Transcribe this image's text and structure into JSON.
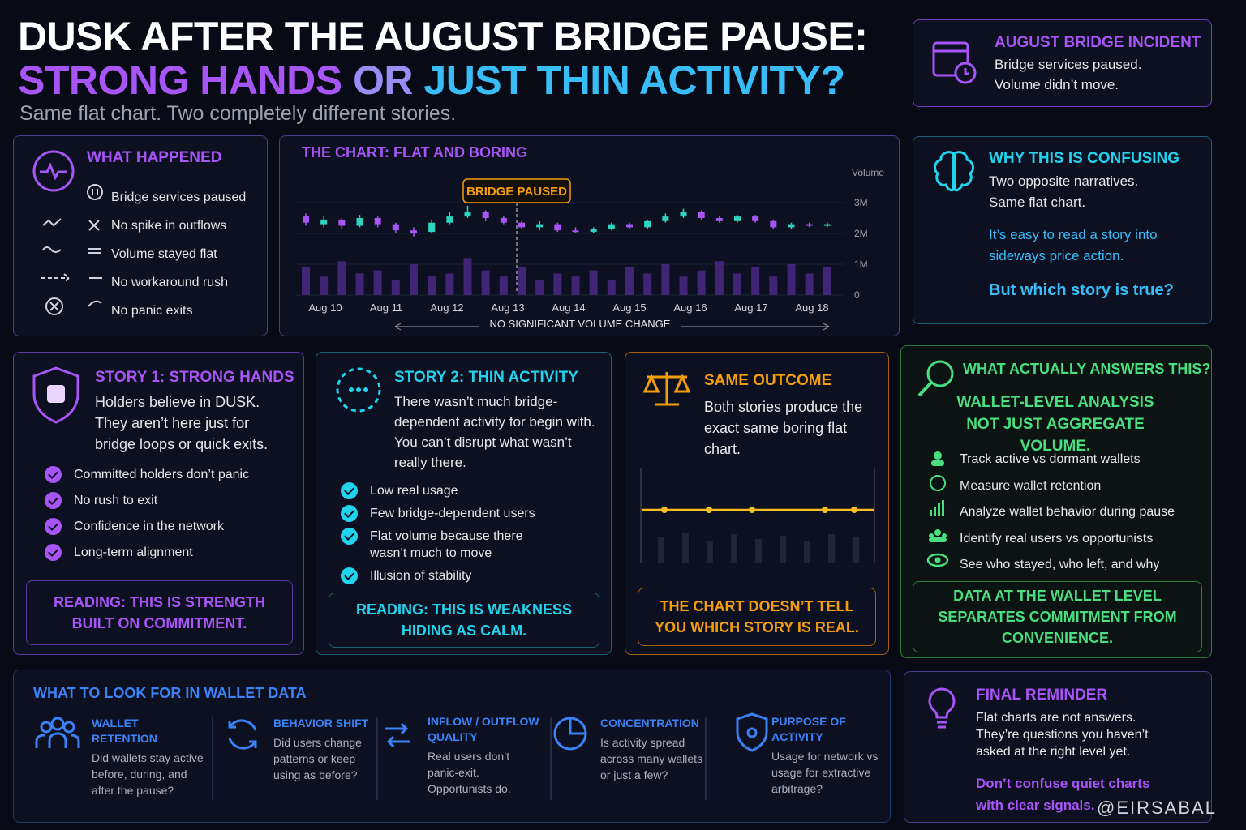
{
  "header": {
    "title_line1": "DUSK AFTER THE AUGUST BRIDGE PAUSE:",
    "title_line2_a": "STRONG HANDS",
    "title_line2_b": "OR",
    "title_line2_c": "JUST THIN ACTIVITY?",
    "subtitle": "Same flat chart. Two completely different stories."
  },
  "incident": {
    "title": "AUGUST BRIDGE INCIDENT",
    "lines": [
      "Bridge services paused.",
      "Volume didn’t move."
    ]
  },
  "what_happened": {
    "title": "WHAT HAPPENED",
    "items": [
      "Bridge services paused",
      "No spike in outflows",
      "Volume stayed flat",
      "No workaround rush",
      "No panic exits"
    ]
  },
  "chart_data": {
    "type": "candlestick",
    "title": "THE CHART: FLAT AND BORING",
    "annotation": "BRIDGE PAUSED",
    "y_label": "Volume",
    "footer": "NO SIGNIFICANT VOLUME CHANGE",
    "x_labels": [
      "Aug 10",
      "Aug 11",
      "Aug 12",
      "Aug 13",
      "Aug 14",
      "Aug 15",
      "Aug 16",
      "Aug 17",
      "Aug 18"
    ],
    "ylim": [
      0,
      4000000
    ],
    "yticks": [
      0,
      {
        "value": 1000000,
        "label": "1M"
      },
      {
        "value": 2000000,
        "label": "2M"
      },
      {
        "value": 3000000,
        "label": "3M"
      }
    ],
    "up_color": "#2dd4bf",
    "down_color": "#a855f7",
    "volume_color": "#4c2a8a",
    "open": [
      2550000,
      2300000,
      2450000,
      2250000,
      2500000,
      2300000,
      2100000,
      2050000,
      2350000,
      2550000,
      2700000,
      2500000,
      2350000,
      2200000,
      2300000,
      2100000,
      2050000,
      2150000,
      2300000,
      2200000,
      2400000,
      2550000,
      2700000,
      2500000,
      2400000,
      2550000,
      2400000,
      2200000,
      2300000,
      2250000
    ],
    "close": [
      2350000,
      2450000,
      2250000,
      2500000,
      2300000,
      2100000,
      2000000,
      2350000,
      2550000,
      2700000,
      2500000,
      2350000,
      2200000,
      2300000,
      2100000,
      2050000,
      2150000,
      2300000,
      2200000,
      2400000,
      2550000,
      2700000,
      2500000,
      2400000,
      2550000,
      2400000,
      2200000,
      2300000,
      2250000,
      2300000
    ],
    "high": [
      2650000,
      2550000,
      2500000,
      2600000,
      2550000,
      2350000,
      2200000,
      2450000,
      2700000,
      2900000,
      2750000,
      2550000,
      2400000,
      2400000,
      2350000,
      2200000,
      2200000,
      2350000,
      2350000,
      2450000,
      2650000,
      2800000,
      2750000,
      2550000,
      2600000,
      2600000,
      2450000,
      2350000,
      2350000,
      2350000
    ],
    "low": [
      2250000,
      2200000,
      2150000,
      2200000,
      2200000,
      2000000,
      1900000,
      2000000,
      2300000,
      2500000,
      2400000,
      2300000,
      2150000,
      2100000,
      2050000,
      2000000,
      2000000,
      2100000,
      2150000,
      2150000,
      2350000,
      2500000,
      2450000,
      2350000,
      2350000,
      2350000,
      2150000,
      2150000,
      2200000,
      2200000
    ],
    "volume": [
      900000,
      600000,
      1100000,
      700000,
      800000,
      500000,
      1000000,
      600000,
      700000,
      1200000,
      800000,
      600000,
      900000,
      500000,
      700000,
      600000,
      800000,
      500000,
      900000,
      700000,
      1000000,
      600000,
      800000,
      1100000,
      700000,
      900000,
      600000,
      1000000,
      700000,
      900000
    ]
  },
  "confusing": {
    "title": "WHY THIS IS CONFUSING",
    "lines": [
      "Two opposite narratives.",
      "Same flat chart."
    ],
    "note": "It’s easy to read a story into sideways price action.",
    "question": "But which story is true?"
  },
  "story1": {
    "title": "STORY 1: STRONG HANDS",
    "intro": "Holders believe in DUSK. They aren’t here just for bridge loops or quick exits.",
    "bullets": [
      "Committed holders don’t panic",
      "No rush to exit",
      "Confidence in the network",
      "Long-term alignment"
    ],
    "reading": "READING: THIS IS STRENGTH BUILT ON COMMITMENT."
  },
  "story2": {
    "title": "STORY 2:  THIN ACTIVITY",
    "intro": "There wasn’t much bridge-dependent activity for begin with. You can’t disrupt what wasn’t really there.",
    "bullets": [
      "Low real usage",
      "Few bridge-dependent users",
      "Flat volume because there wasn’t much to move",
      "Illusion of stability"
    ],
    "reading": "READING: THIS IS WEAKNESS HIDING AS CALM."
  },
  "same": {
    "title": "SAME OUTCOME",
    "text": "Both stories produce the exact same boring flat chart.",
    "callout": "THE CHART DOESN’T TELL YOU WHICH STORY IS REAL."
  },
  "answers": {
    "title": "WHAT ACTUALLY ANSWERS THIS?",
    "headline": "WALLET-LEVEL ANALYSIS NOT JUST AGGREGATE VOLUME.",
    "items": [
      "Track active vs dormant wallets",
      "Measure wallet retention",
      "Analyze wallet behavior during pause",
      "Identify real users vs opportunists",
      "See who stayed, who left, and why"
    ],
    "callout": "DATA AT THE WALLET LEVEL SEPARATES COMMITMENT FROM CONVENIENCE."
  },
  "look": {
    "title": "WHAT TO LOOK FOR IN WALLET DATA",
    "items": [
      {
        "title": "WALLET RETENTION",
        "text": "Did wallets stay active before, during, and after the pause?"
      },
      {
        "title": "BEHAVIOR SHIFT",
        "text": "Did users change patterns or keep using as before?"
      },
      {
        "title": "INFLOW / OUTFLOW QUALITY",
        "text": "Real users don’t panic-exit. Opportunists do."
      },
      {
        "title": "CONCENTRATION",
        "text": "Is activity spread across many wallets or just a few?"
      },
      {
        "title": "PURPOSE OF ACTIVITY",
        "text": "Usage for network vs usage for extractive arbitrage?"
      }
    ]
  },
  "reminder": {
    "title": "FINAL REMINDER",
    "text": "Flat charts are not answers. They’re questions you haven’t asked at the right level yet.",
    "highlight": "Don’t confuse quiet charts with clear signals."
  },
  "watermark": "@EIRSABAL"
}
